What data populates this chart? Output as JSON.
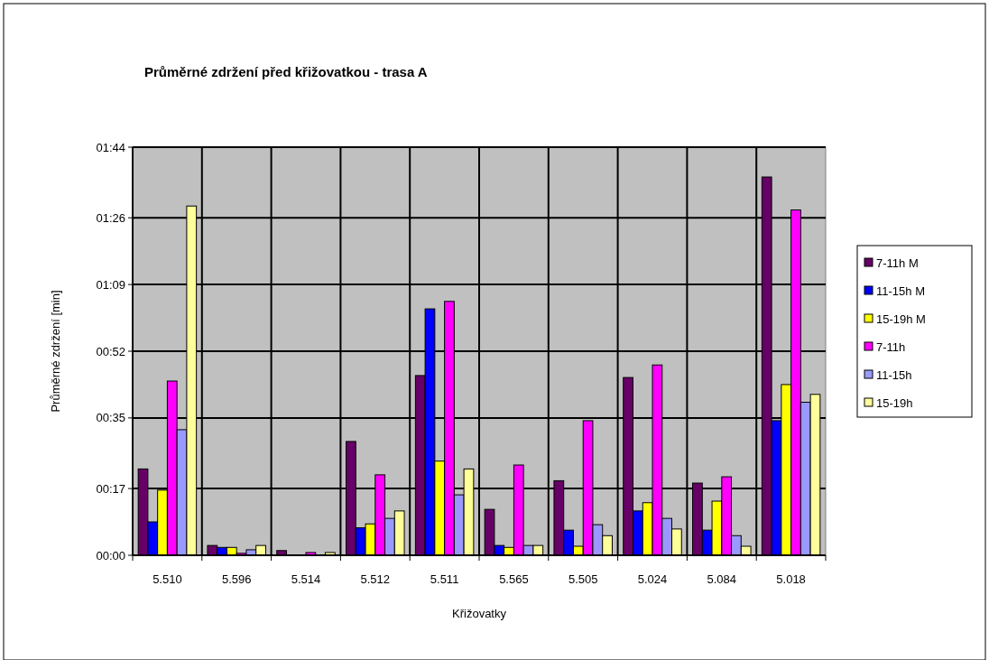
{
  "chart_data": {
    "type": "bar",
    "title": "Průměrné zdržení před křižovatkou - trasa A",
    "xlabel": "Křižovatky",
    "ylabel": "Průměrné zdržení  [min]",
    "categories": [
      "5.510",
      "5.596",
      "5.514",
      "5.512",
      "5.511",
      "5.565",
      "5.505",
      "5.024",
      "5.084",
      "5.018"
    ],
    "series": [
      {
        "name": "7-11h  M",
        "color": "#660066",
        "values": [
          22,
          2.5,
          1.2,
          29,
          45.8,
          11.7,
          19,
          45.3,
          18.4,
          96.4
        ]
      },
      {
        "name": "11-15h  M",
        "color": "#0000ff",
        "values": [
          8.5,
          2,
          0,
          7,
          62.8,
          2.5,
          6.4,
          11.3,
          6.4,
          34.3
        ]
      },
      {
        "name": "15-19h  M",
        "color": "#ffff00",
        "values": [
          16.6,
          2,
          0,
          8,
          24,
          2,
          2.3,
          13.4,
          13.8,
          43.5
        ]
      },
      {
        "name": "7-11h",
        "color": "#ff00ff",
        "values": [
          44.4,
          0.5,
          0.7,
          20.5,
          64.7,
          23,
          34.3,
          48.5,
          20,
          88
        ]
      },
      {
        "name": "11-15h",
        "color": "#9999ff",
        "values": [
          32,
          1.4,
          null,
          9.4,
          15.4,
          2.5,
          7.8,
          9.4,
          5,
          39
        ]
      },
      {
        "name": "15-19h",
        "color": "#ffff99",
        "values": [
          89,
          2.5,
          0.7,
          11.3,
          22,
          2.5,
          5,
          6.7,
          2.3,
          41
        ]
      }
    ],
    "ylim": [
      0,
      104
    ],
    "yticks": [
      {
        "value": 0,
        "label": "00:00"
      },
      {
        "value": 17,
        "label": "00:17"
      },
      {
        "value": 35,
        "label": "00:35"
      },
      {
        "value": 52,
        "label": "00:52"
      },
      {
        "value": 69,
        "label": "01:09"
      },
      {
        "value": 86,
        "label": "01:26"
      },
      {
        "value": 104,
        "label": "01:44"
      }
    ],
    "grid": true,
    "legend": "right"
  }
}
